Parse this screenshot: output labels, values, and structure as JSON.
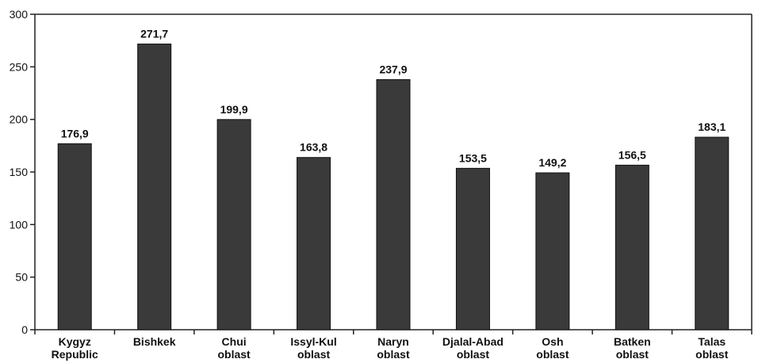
{
  "chart_data": {
    "type": "bar",
    "categories": [
      [
        "Kygyz",
        "Republic"
      ],
      [
        "Bishkek"
      ],
      [
        "Chui",
        "oblast"
      ],
      [
        "Issyl-Kul",
        "oblast"
      ],
      [
        "Naryn",
        "oblast"
      ],
      [
        "Djalal-Abad",
        "oblast"
      ],
      [
        "Osh",
        "oblast"
      ],
      [
        "Batken",
        "oblast"
      ],
      [
        "Talas",
        "oblast"
      ]
    ],
    "values": [
      176.9,
      271.7,
      199.9,
      163.8,
      237.9,
      153.5,
      149.2,
      156.5,
      183.1
    ],
    "value_labels": [
      "176,9",
      "271,7",
      "199,9",
      "163,8",
      "237,9",
      "153,5",
      "149,2",
      "156,5",
      "183,1"
    ],
    "y_ticks": [
      0,
      50,
      100,
      150,
      200,
      250,
      300
    ],
    "ylim": [
      0,
      300
    ],
    "grid": false,
    "bar_color": "#3a3a3a",
    "title": "",
    "xlabel": "",
    "ylabel": ""
  }
}
